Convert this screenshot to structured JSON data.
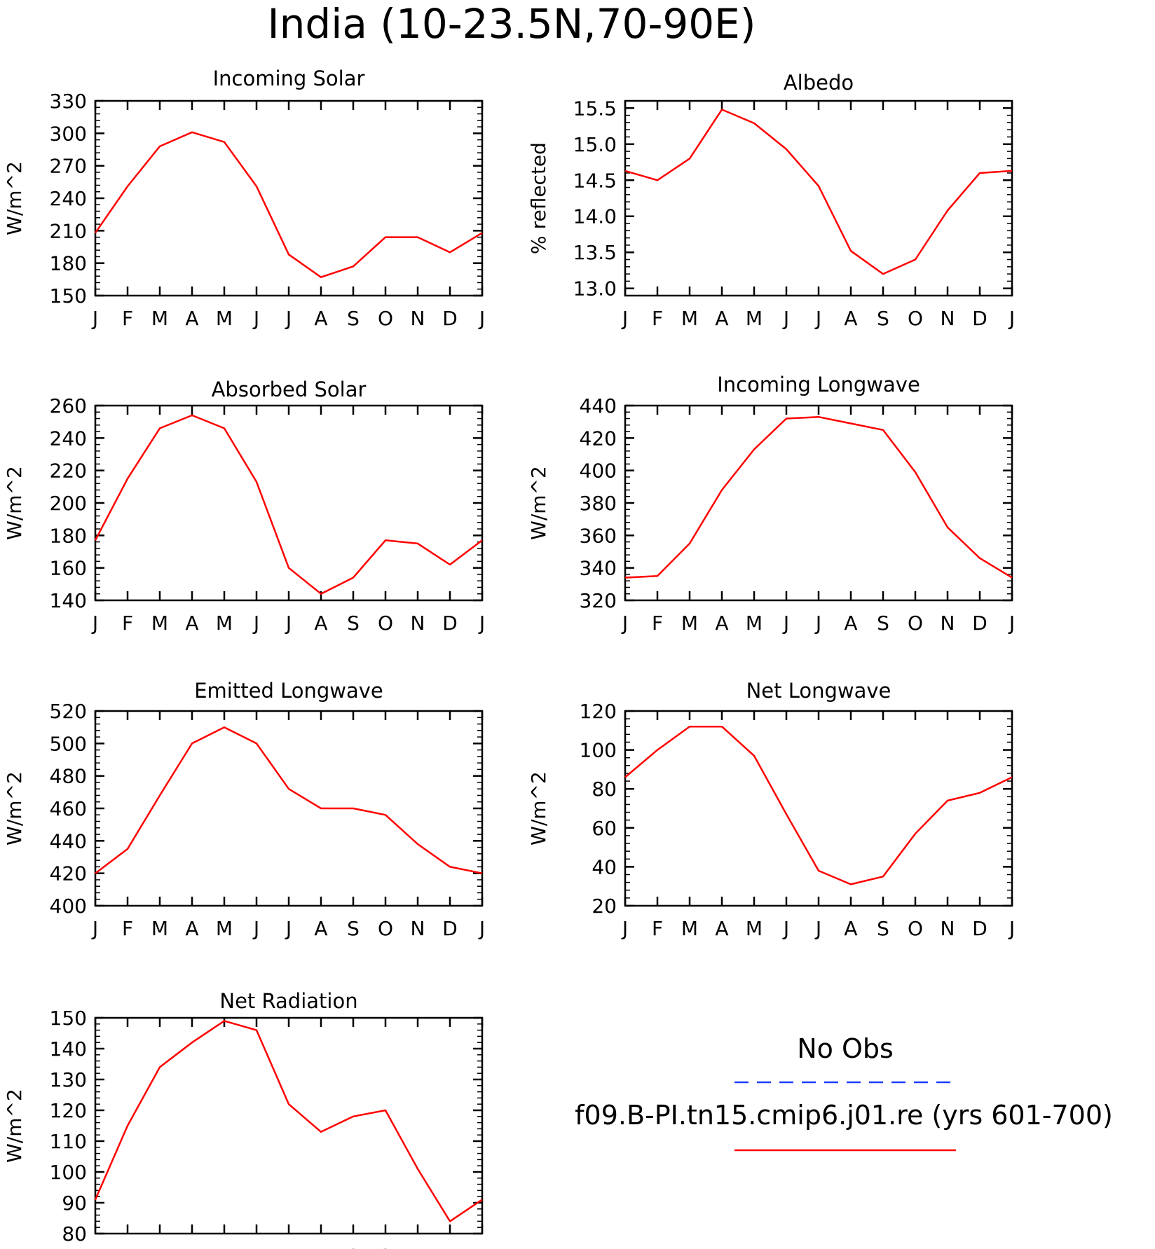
{
  "title": "India (10-23.5N,70-90E)",
  "months": [
    "J",
    "F",
    "M",
    "A",
    "M",
    "J",
    "J",
    "A",
    "S",
    "O",
    "N",
    "D",
    "J"
  ],
  "legend": {
    "obs_label": "No Obs",
    "obs_color": "#1f3cff",
    "model_label": "f09.B-PI.tn15.cmip6.j01.re (yrs 601-700)",
    "model_color": "#ff0000"
  },
  "chart_data": [
    {
      "type": "line",
      "title": "Incoming Solar",
      "ylabel": "W/m^2",
      "ylim": [
        150,
        330
      ],
      "yticks": [
        150,
        180,
        210,
        240,
        270,
        300,
        330
      ],
      "yticklabels": [
        "150",
        "180",
        "210",
        "240",
        "270",
        "300",
        "330"
      ],
      "x": [
        "J",
        "F",
        "M",
        "A",
        "M",
        "J",
        "J",
        "A",
        "S",
        "O",
        "N",
        "D",
        "J"
      ],
      "series": [
        {
          "color": "#ff0000",
          "values": [
            208,
            251,
            288,
            301,
            292,
            251,
            188,
            167,
            177,
            204,
            204,
            190,
            208
          ]
        }
      ]
    },
    {
      "type": "line",
      "title": "Albedo",
      "ylabel": "% reflected",
      "ylim": [
        12.9,
        15.6
      ],
      "yticks": [
        13.0,
        13.5,
        14.0,
        14.5,
        15.0,
        15.5
      ],
      "yticklabels": [
        "13.0",
        "13.5",
        "14.0",
        "14.5",
        "15.0",
        "15.5"
      ],
      "x": [
        "J",
        "F",
        "M",
        "A",
        "M",
        "J",
        "J",
        "A",
        "S",
        "O",
        "N",
        "D",
        "J"
      ],
      "series": [
        {
          "color": "#ff0000",
          "values": [
            14.63,
            14.5,
            14.8,
            15.48,
            15.29,
            14.93,
            14.42,
            13.52,
            13.2,
            13.4,
            14.08,
            14.6,
            14.63
          ]
        }
      ]
    },
    {
      "type": "line",
      "title": "Absorbed Solar",
      "ylabel": "W/m^2",
      "ylim": [
        140,
        260
      ],
      "yticks": [
        140,
        160,
        180,
        200,
        220,
        240,
        260
      ],
      "yticklabels": [
        "140",
        "160",
        "180",
        "200",
        "220",
        "240",
        "260"
      ],
      "x": [
        "J",
        "F",
        "M",
        "A",
        "M",
        "J",
        "J",
        "A",
        "S",
        "O",
        "N",
        "D",
        "J"
      ],
      "series": [
        {
          "color": "#ff0000",
          "values": [
            177,
            215,
            246,
            254,
            246,
            213,
            160,
            144,
            154,
            177,
            175,
            162,
            177
          ]
        }
      ]
    },
    {
      "type": "line",
      "title": "Incoming Longwave",
      "ylabel": "W/m^2",
      "ylim": [
        320,
        440
      ],
      "yticks": [
        320,
        340,
        360,
        380,
        400,
        420,
        440
      ],
      "yticklabels": [
        "320",
        "340",
        "360",
        "380",
        "400",
        "420",
        "440"
      ],
      "x": [
        "J",
        "F",
        "M",
        "A",
        "M",
        "J",
        "J",
        "A",
        "S",
        "O",
        "N",
        "D",
        "J"
      ],
      "series": [
        {
          "color": "#ff0000",
          "values": [
            334,
            335,
            355,
            388,
            413,
            432,
            433,
            429,
            425,
            399,
            365,
            346,
            334
          ]
        }
      ]
    },
    {
      "type": "line",
      "title": "Emitted Longwave",
      "ylabel": "W/m^2",
      "ylim": [
        400,
        520
      ],
      "yticks": [
        400,
        420,
        440,
        460,
        480,
        500,
        520
      ],
      "yticklabels": [
        "400",
        "420",
        "440",
        "460",
        "480",
        "500",
        "520"
      ],
      "x": [
        "J",
        "F",
        "M",
        "A",
        "M",
        "J",
        "J",
        "A",
        "S",
        "O",
        "N",
        "D",
        "J"
      ],
      "series": [
        {
          "color": "#ff0000",
          "values": [
            420,
            435,
            468,
            500,
            510,
            500,
            472,
            460,
            460,
            456,
            438,
            424,
            420
          ]
        }
      ]
    },
    {
      "type": "line",
      "title": "Net Longwave",
      "ylabel": "W/m^2",
      "ylim": [
        20,
        120
      ],
      "yticks": [
        20,
        40,
        60,
        80,
        100,
        120
      ],
      "yticklabels": [
        "20",
        "40",
        "60",
        "80",
        "100",
        "120"
      ],
      "x": [
        "J",
        "F",
        "M",
        "A",
        "M",
        "J",
        "J",
        "A",
        "S",
        "O",
        "N",
        "D",
        "J"
      ],
      "series": [
        {
          "color": "#ff0000",
          "values": [
            86,
            100,
            112,
            112,
            97,
            67,
            38,
            31,
            35,
            57,
            74,
            78,
            86
          ]
        }
      ]
    },
    {
      "type": "line",
      "title": "Net Radiation",
      "ylabel": "W/m^2",
      "ylim": [
        80,
        150
      ],
      "yticks": [
        80,
        90,
        100,
        110,
        120,
        130,
        140,
        150
      ],
      "yticklabels": [
        "80",
        "90",
        "100",
        "110",
        "120",
        "130",
        "140",
        "150"
      ],
      "x": [
        "J",
        "F",
        "M",
        "A",
        "M",
        "J",
        "J",
        "A",
        "S",
        "O",
        "N",
        "D",
        "J"
      ],
      "series": [
        {
          "color": "#ff0000",
          "values": [
            91,
            115,
            134,
            142,
            149,
            146,
            122,
            113,
            118,
            120,
            101,
            84,
            91
          ]
        }
      ]
    }
  ]
}
